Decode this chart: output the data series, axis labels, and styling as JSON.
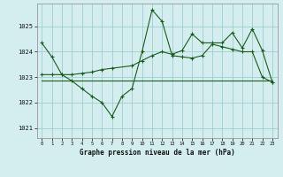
{
  "background_color": "#d4eef0",
  "grid_color": "#9ecece",
  "line_color": "#1a5c1a",
  "xlim": [
    -0.5,
    23.5
  ],
  "ylim": [
    1020.6,
    1025.9
  ],
  "yticks": [
    1021,
    1022,
    1023,
    1024,
    1025
  ],
  "xticks": [
    0,
    1,
    2,
    3,
    4,
    5,
    6,
    7,
    8,
    9,
    10,
    11,
    12,
    13,
    14,
    15,
    16,
    17,
    18,
    19,
    20,
    21,
    22,
    23
  ],
  "xlabel": "Graphe pression niveau de la mer (hPa)",
  "series1_x": [
    0,
    1,
    2,
    3,
    4,
    5,
    6,
    7,
    8,
    9,
    10,
    11,
    12,
    13,
    14,
    15,
    16,
    17,
    18,
    19,
    20,
    21,
    22,
    23
  ],
  "series1_y": [
    1024.35,
    1023.8,
    1023.1,
    1022.85,
    1022.55,
    1022.25,
    1022.0,
    1021.45,
    1022.25,
    1022.55,
    1024.0,
    1025.65,
    1025.2,
    1023.85,
    1023.8,
    1023.75,
    1023.85,
    1024.3,
    1024.2,
    1024.1,
    1024.0,
    1024.0,
    1023.0,
    1022.8
  ],
  "series2_x": [
    0,
    1,
    2,
    3,
    4,
    5,
    6,
    7,
    8,
    9,
    10,
    11,
    12,
    13,
    14,
    15,
    16,
    17,
    18,
    19,
    20,
    21,
    22,
    23
  ],
  "series2_y": [
    1022.85,
    1022.85,
    1022.85,
    1022.85,
    1022.85,
    1022.85,
    1022.85,
    1022.85,
    1022.85,
    1022.85,
    1022.85,
    1022.85,
    1022.85,
    1022.85,
    1022.85,
    1022.85,
    1022.85,
    1022.85,
    1022.85,
    1022.85,
    1022.85,
    1022.85,
    1022.85,
    1022.85
  ],
  "series3_x": [
    0,
    1,
    2,
    3,
    4,
    5,
    6,
    7,
    9,
    10,
    11,
    12,
    13,
    14,
    15,
    16,
    17,
    18,
    19,
    20,
    21,
    22,
    23
  ],
  "series3_y": [
    1023.1,
    1023.1,
    1023.1,
    1023.1,
    1023.15,
    1023.2,
    1023.3,
    1023.35,
    1023.45,
    1023.65,
    1023.85,
    1024.0,
    1023.9,
    1024.05,
    1024.7,
    1024.35,
    1024.35,
    1024.35,
    1024.75,
    1024.15,
    1024.9,
    1024.05,
    1022.8
  ]
}
